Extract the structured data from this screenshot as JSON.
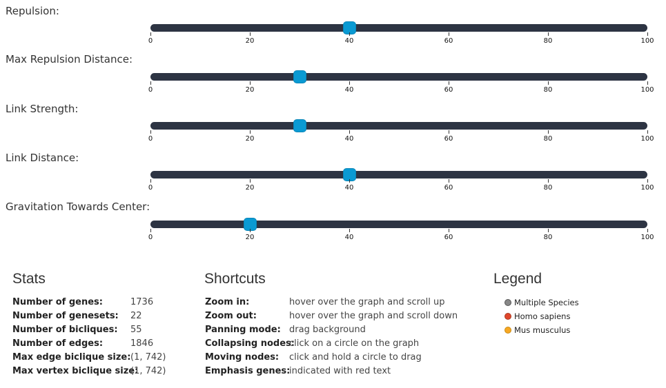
{
  "sliders": [
    {
      "label": "Repulsion:",
      "value": 40
    },
    {
      "label": "Max Repulsion Distance:",
      "value": 30
    },
    {
      "label": "Link Strength:",
      "value": 30
    },
    {
      "label": "Link Distance:",
      "value": 40
    },
    {
      "label": "Gravitation Towards Center:",
      "value": 20
    }
  ],
  "slider_range": {
    "min": 0,
    "max": 100
  },
  "ticks": [
    "0",
    "20",
    "40",
    "60",
    "80",
    "100"
  ],
  "stats": {
    "title": "Stats",
    "rows": [
      {
        "key": "Number of genes:",
        "value": "1736"
      },
      {
        "key": "Number of genesets:",
        "value": "22"
      },
      {
        "key": "Number of bicliques:",
        "value": "55"
      },
      {
        "key": "Number of edges:",
        "value": "1846"
      },
      {
        "key": "Max edge biclique size:",
        "value": "(1, 742)"
      },
      {
        "key": "Max vertex biclique size:",
        "value": "(1, 742)"
      }
    ]
  },
  "shortcuts": {
    "title": "Shortcuts",
    "rows": [
      {
        "key": "Zoom in:",
        "value": "hover over the graph and scroll up"
      },
      {
        "key": "Zoom out:",
        "value": "hover over the graph and scroll down"
      },
      {
        "key": "Panning mode:",
        "value": "drag background"
      },
      {
        "key": "Collapsing nodes:",
        "value": "click on a circle on the graph"
      },
      {
        "key": "Moving nodes:",
        "value": "click and hold a circle to drag"
      },
      {
        "key": "Emphasis genes:",
        "value": "indicated with red text"
      }
    ]
  },
  "legend": {
    "title": "Legend",
    "items": [
      {
        "label": "Multiple Species",
        "color": "#888888",
        "border": "#555555"
      },
      {
        "label": "Homo sapiens",
        "color": "#e0462b",
        "border": "#a83a22"
      },
      {
        "label": "Mus musculus",
        "color": "#f7a823",
        "border": "#c98a14"
      }
    ]
  }
}
